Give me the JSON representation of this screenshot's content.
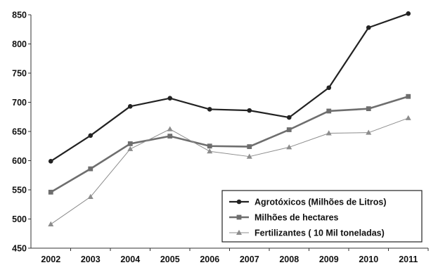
{
  "chart_data": {
    "type": "line",
    "title": "",
    "xlabel": "",
    "ylabel": "",
    "categories": [
      "2002",
      "2003",
      "2004",
      "2005",
      "2006",
      "2007",
      "2008",
      "2009",
      "2010",
      "2011"
    ],
    "ylim": [
      450,
      850
    ],
    "yticks": [
      450,
      500,
      550,
      600,
      650,
      700,
      750,
      800,
      850
    ],
    "grid": false,
    "legend_position": "bottom-right",
    "series": [
      {
        "name": "Agrotóxicos (Milhões de Litros)",
        "marker": "circle",
        "color": "#222222",
        "values": [
          599,
          643,
          693,
          707,
          688,
          686,
          674,
          725,
          828,
          852
        ]
      },
      {
        "name": "Milhões de hectares",
        "marker": "square",
        "color": "#6e6e6e",
        "values": [
          546,
          586,
          629,
          642,
          625,
          624,
          653,
          685,
          689,
          710
        ]
      },
      {
        "name": "Fertilizantes ( 10 Mil toneladas)",
        "marker": "triangle",
        "color": "#8c8c8c",
        "values": [
          491,
          538,
          620,
          654,
          616,
          607,
          623,
          647,
          648,
          673
        ]
      }
    ]
  }
}
